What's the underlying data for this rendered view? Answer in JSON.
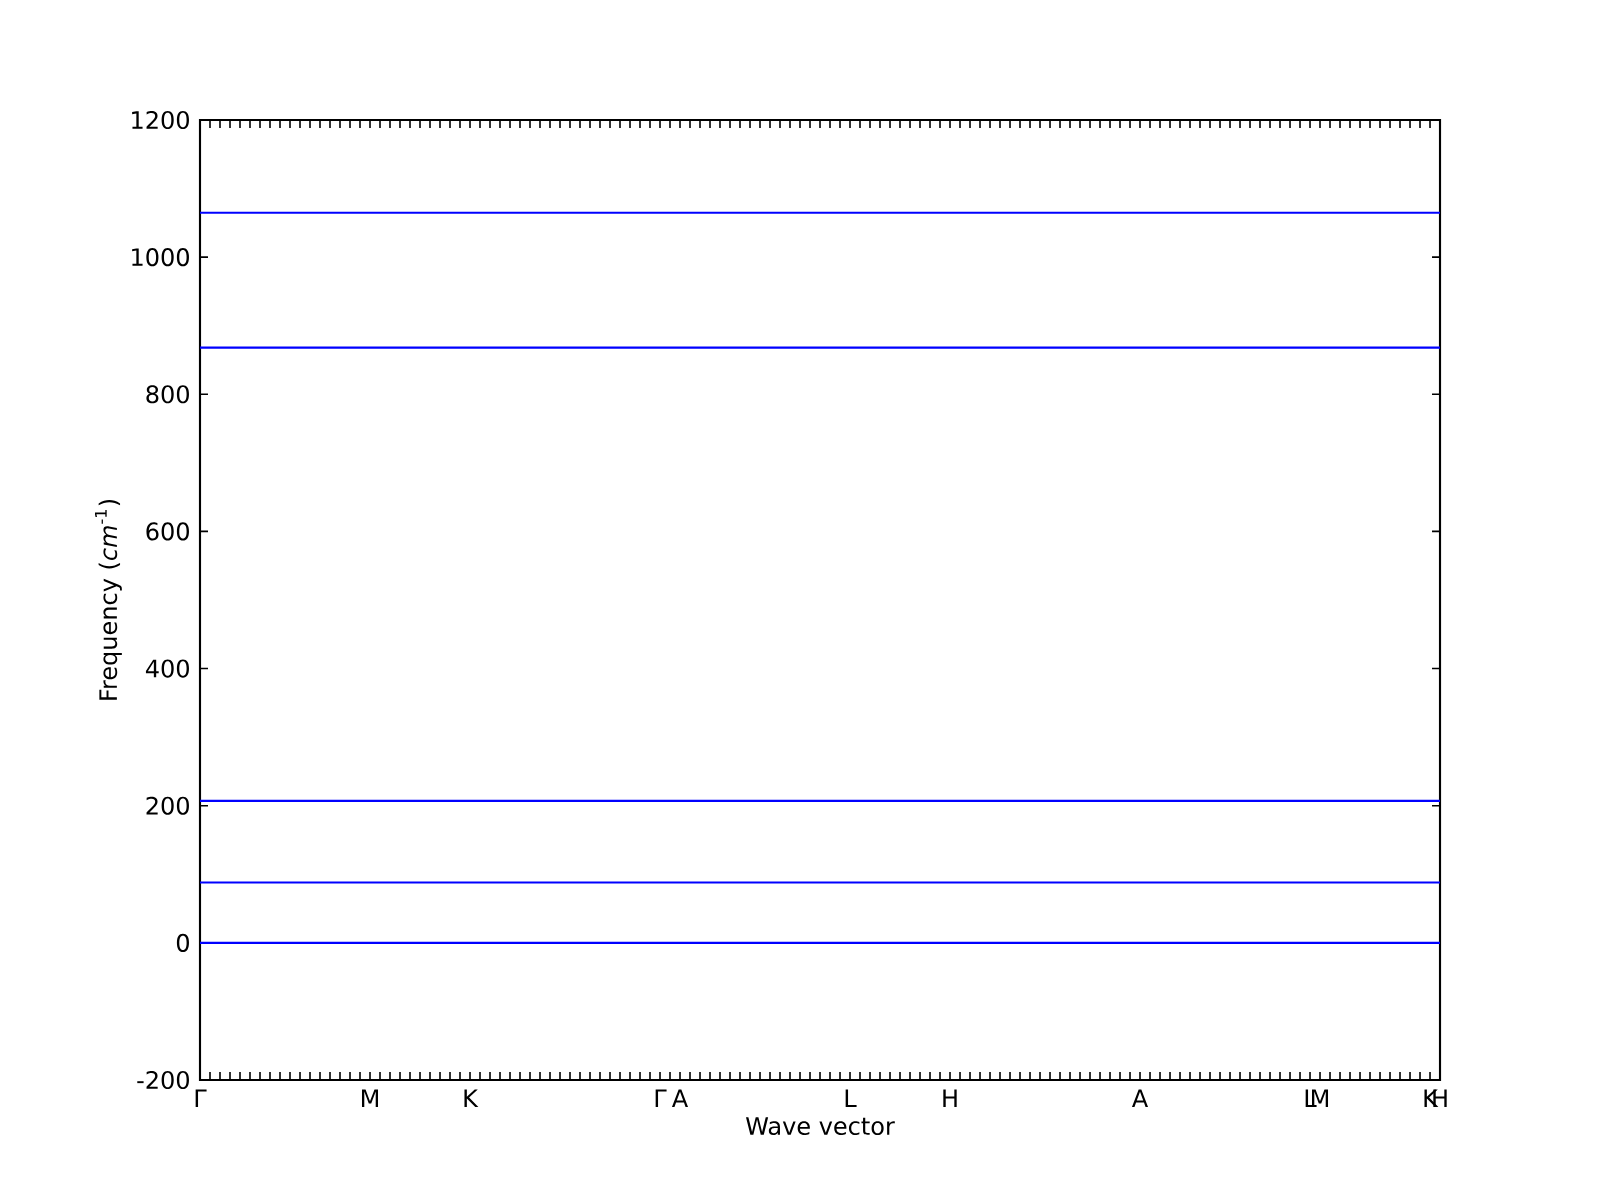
{
  "chart_data": {
    "type": "line",
    "xlabel": "Wave vector",
    "ylabel": "Frequency (*cm*$^{-1}$)",
    "categories": [
      "Γ",
      null,
      null,
      null,
      null,
      null,
      null,
      null,
      null,
      null,
      null,
      null,
      null,
      null,
      null,
      null,
      null,
      "M",
      null,
      null,
      null,
      null,
      null,
      null,
      null,
      null,
      null,
      "K",
      null,
      null,
      null,
      null,
      null,
      null,
      null,
      null,
      null,
      null,
      null,
      null,
      null,
      null,
      null,
      null,
      null,
      null,
      "Γ",
      null,
      "A",
      null,
      null,
      null,
      null,
      null,
      null,
      null,
      null,
      null,
      null,
      null,
      null,
      null,
      null,
      null,
      null,
      "L",
      null,
      null,
      null,
      null,
      null,
      null,
      null,
      null,
      null,
      "H",
      null,
      null,
      null,
      null,
      null,
      null,
      null,
      null,
      null,
      null,
      null,
      null,
      null,
      null,
      null,
      null,
      null,
      null,
      "A",
      null,
      null,
      null,
      null,
      null,
      null,
      null,
      null,
      null,
      null,
      null,
      null,
      null,
      null,
      null,
      null,
      "L",
      "M",
      null,
      null,
      null,
      null,
      null,
      null,
      null,
      null,
      null,
      null,
      "K",
      "H"
    ],
    "series": [
      {
        "color": "#0000ff",
        "values": [
          1065,
          1065,
          1065,
          1065,
          1065,
          1065,
          1065,
          1065,
          1065,
          1065,
          1065,
          1065,
          1065,
          1065,
          1065,
          1065,
          1065,
          1065,
          1065,
          1065,
          1065,
          1065,
          1065,
          1065,
          1065,
          1065,
          1065,
          1065,
          1065,
          1065,
          1065,
          1065,
          1065,
          1065,
          1065,
          1065,
          1065,
          1065,
          1065,
          1065,
          1065,
          1065,
          1065,
          1065,
          1065,
          1065,
          1065,
          1065,
          1065,
          1065,
          1065,
          1065,
          1065,
          1065,
          1065,
          1065,
          1065,
          1065,
          1065,
          1065,
          1065,
          1065,
          1065,
          1065,
          1065,
          1065,
          1065,
          1065,
          1065,
          1065,
          1065,
          1065,
          1065,
          1065,
          1065,
          1065,
          1065,
          1065,
          1065,
          1065,
          1065,
          1065,
          1065,
          1065,
          1065,
          1065,
          1065,
          1065,
          1065,
          1065,
          1065,
          1065,
          1065,
          1065,
          1065,
          1065,
          1065,
          1065,
          1065,
          1065,
          1065,
          1065,
          1065,
          1065,
          1065,
          1065,
          1065,
          1065,
          1065,
          1065,
          1065,
          1065,
          1065,
          1065,
          1065,
          1065,
          1065,
          1065,
          1065,
          1065,
          1065,
          1065,
          1065,
          1065,
          1065
        ]
      },
      {
        "color": "#0000ff",
        "values": [
          868,
          868,
          868,
          868,
          868,
          868,
          868,
          868,
          868,
          868,
          868,
          868,
          868,
          868,
          868,
          868,
          868,
          868,
          868,
          868,
          868,
          868,
          868,
          868,
          868,
          868,
          868,
          868,
          868,
          868,
          868,
          868,
          868,
          868,
          868,
          868,
          868,
          868,
          868,
          868,
          868,
          868,
          868,
          868,
          868,
          868,
          868,
          868,
          868,
          868,
          868,
          868,
          868,
          868,
          868,
          868,
          868,
          868,
          868,
          868,
          868,
          868,
          868,
          868,
          868,
          868,
          868,
          868,
          868,
          868,
          868,
          868,
          868,
          868,
          868,
          868,
          868,
          868,
          868,
          868,
          868,
          868,
          868,
          868,
          868,
          868,
          868,
          868,
          868,
          868,
          868,
          868,
          868,
          868,
          868,
          868,
          868,
          868,
          868,
          868,
          868,
          868,
          868,
          868,
          868,
          868,
          868,
          868,
          868,
          868,
          868,
          868,
          868,
          868,
          868,
          868,
          868,
          868,
          868,
          868,
          868,
          868,
          868,
          868,
          868
        ]
      },
      {
        "color": "#0000ff",
        "values": [
          207,
          207,
          207,
          207,
          207,
          207,
          207,
          207,
          207,
          207,
          207,
          207,
          207,
          207,
          207,
          207,
          207,
          207,
          207,
          207,
          207,
          207,
          207,
          207,
          207,
          207,
          207,
          207,
          207,
          207,
          207,
          207,
          207,
          207,
          207,
          207,
          207,
          207,
          207,
          207,
          207,
          207,
          207,
          207,
          207,
          207,
          207,
          207,
          207,
          207,
          207,
          207,
          207,
          207,
          207,
          207,
          207,
          207,
          207,
          207,
          207,
          207,
          207,
          207,
          207,
          207,
          207,
          207,
          207,
          207,
          207,
          207,
          207,
          207,
          207,
          207,
          207,
          207,
          207,
          207,
          207,
          207,
          207,
          207,
          207,
          207,
          207,
          207,
          207,
          207,
          207,
          207,
          207,
          207,
          207,
          207,
          207,
          207,
          207,
          207,
          207,
          207,
          207,
          207,
          207,
          207,
          207,
          207,
          207,
          207,
          207,
          207,
          207,
          207,
          207,
          207,
          207,
          207,
          207,
          207,
          207,
          207,
          207,
          207,
          207
        ]
      },
      {
        "color": "#0000ff",
        "values": [
          88,
          88,
          88,
          88,
          88,
          88,
          88,
          88,
          88,
          88,
          88,
          88,
          88,
          88,
          88,
          88,
          88,
          88,
          88,
          88,
          88,
          88,
          88,
          88,
          88,
          88,
          88,
          88,
          88,
          88,
          88,
          88,
          88,
          88,
          88,
          88,
          88,
          88,
          88,
          88,
          88,
          88,
          88,
          88,
          88,
          88,
          88,
          88,
          88,
          88,
          88,
          88,
          88,
          88,
          88,
          88,
          88,
          88,
          88,
          88,
          88,
          88,
          88,
          88,
          88,
          88,
          88,
          88,
          88,
          88,
          88,
          88,
          88,
          88,
          88,
          88,
          88,
          88,
          88,
          88,
          88,
          88,
          88,
          88,
          88,
          88,
          88,
          88,
          88,
          88,
          88,
          88,
          88,
          88,
          88,
          88,
          88,
          88,
          88,
          88,
          88,
          88,
          88,
          88,
          88,
          88,
          88,
          88,
          88,
          88,
          88,
          88,
          88,
          88,
          88,
          88,
          88,
          88,
          88,
          88,
          88,
          88,
          88,
          88,
          88
        ]
      },
      {
        "color": "#0000ff",
        "values": [
          0,
          0,
          0,
          0,
          0,
          0,
          0,
          0,
          0,
          0,
          0,
          0,
          0,
          0,
          0,
          0,
          0,
          0,
          0,
          0,
          0,
          0,
          0,
          0,
          0,
          0,
          0,
          0,
          0,
          0,
          0,
          0,
          0,
          0,
          0,
          0,
          0,
          0,
          0,
          0,
          0,
          0,
          0,
          0,
          0,
          0,
          0,
          0,
          0,
          0,
          0,
          0,
          0,
          0,
          0,
          0,
          0,
          0,
          0,
          0,
          0,
          0,
          0,
          0,
          0,
          0,
          0,
          0,
          0,
          0,
          0,
          0,
          0,
          0,
          0,
          0,
          0,
          0,
          0,
          0,
          0,
          0,
          0,
          0,
          0,
          0,
          0,
          0,
          0,
          0,
          0,
          0,
          0,
          0,
          0,
          0,
          0,
          0,
          0,
          0,
          0,
          0,
          0,
          0,
          0,
          0,
          0,
          0,
          0,
          0,
          0,
          0,
          0,
          0,
          0,
          0,
          0,
          0,
          0,
          0,
          0,
          0,
          0,
          0,
          0
        ]
      }
    ],
    "ylim": [
      -200,
      1200
    ],
    "yticks": [
      -200,
      0,
      200,
      400,
      600,
      800,
      1000,
      1200
    ],
    "grid": false,
    "marker": "none",
    "line_style": "solid"
  }
}
